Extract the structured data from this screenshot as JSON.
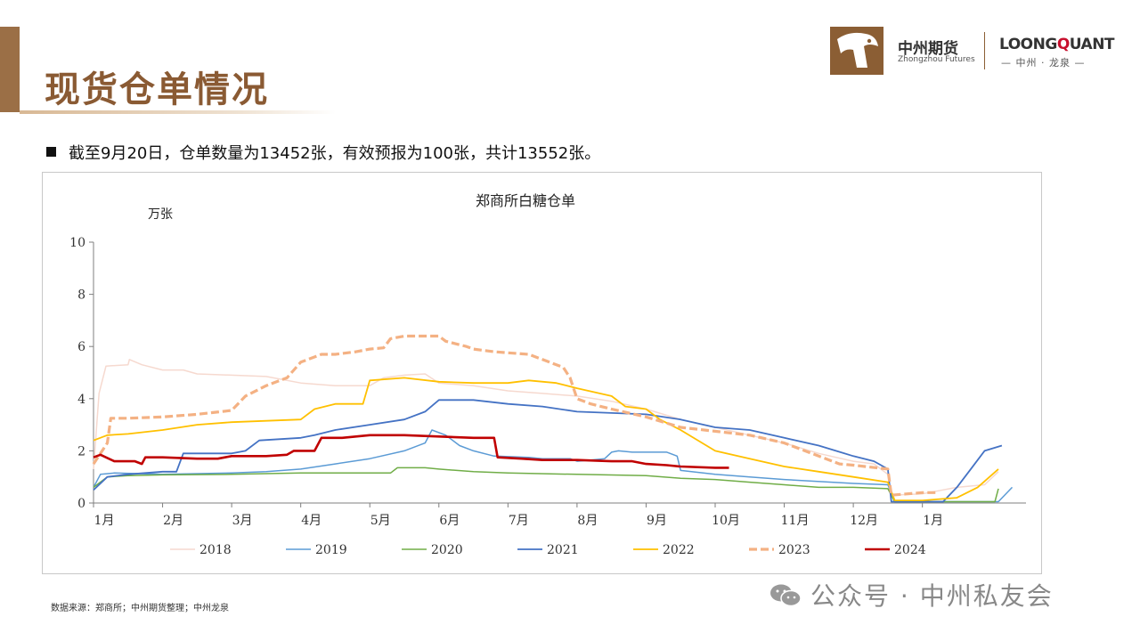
{
  "page": {
    "title": "现货仓单情况",
    "bullet": "截至9月20日，仓单数量为13452张，有效预报为100张，共计13552张。",
    "footnote": "数据来源：郑商所；中州期货整理；中州龙泉",
    "watermark": "公众号 · 中州私友会"
  },
  "logo": {
    "brand_cn": "中州期货",
    "brand_en": "Zhongzhou Futures",
    "quant_prefix": "LOONG",
    "quant_accent": "Q",
    "quant_suffix": "UANT",
    "quant_sub": "— 中州 · 龙泉 —"
  },
  "colors": {
    "brand_brown": "#8b5e34",
    "2018": "#f6d9cf",
    "2019": "#5b9bd5",
    "2020": "#70ad47",
    "2021": "#4472c4",
    "2022": "#ffc000",
    "2023": "#f4b183",
    "2024": "#c00000"
  },
  "chart_data": {
    "type": "line",
    "title": "郑商所白糖仓单",
    "ylabel": "万张",
    "ylim": [
      0,
      10
    ],
    "yticks": [
      "0",
      "2",
      "4",
      "6",
      "8",
      "10"
    ],
    "xlim": [
      0,
      13.5
    ],
    "xticks": [
      "1月",
      "2月",
      "3月",
      "4月",
      "5月",
      "6月",
      "7月",
      "8月",
      "9月",
      "10月",
      "11月",
      "12月",
      "1月"
    ],
    "legend_position": "bottom",
    "series": [
      {
        "name": "2018",
        "color": "#f6d9cf",
        "style": "solid",
        "width": 1.5,
        "points": [
          [
            0,
            1.3
          ],
          [
            0.08,
            4.2
          ],
          [
            0.18,
            5.25
          ],
          [
            0.5,
            5.3
          ],
          [
            0.52,
            5.5
          ],
          [
            0.7,
            5.3
          ],
          [
            1.0,
            5.1
          ],
          [
            1.3,
            5.1
          ],
          [
            1.5,
            4.95
          ],
          [
            2.0,
            4.9
          ],
          [
            2.5,
            4.85
          ],
          [
            3.0,
            4.6
          ],
          [
            3.5,
            4.5
          ],
          [
            4.0,
            4.5
          ],
          [
            4.2,
            4.8
          ],
          [
            4.5,
            4.9
          ],
          [
            4.8,
            4.95
          ],
          [
            5.0,
            4.6
          ],
          [
            5.5,
            4.5
          ],
          [
            6.0,
            4.3
          ],
          [
            6.5,
            4.2
          ],
          [
            7.0,
            4.1
          ],
          [
            7.5,
            3.9
          ],
          [
            8.0,
            3.6
          ],
          [
            8.5,
            3.2
          ],
          [
            9.0,
            2.9
          ],
          [
            9.5,
            2.6
          ],
          [
            10.0,
            2.3
          ],
          [
            10.5,
            1.9
          ],
          [
            11.0,
            1.6
          ],
          [
            11.3,
            1.5
          ],
          [
            11.5,
            1.1
          ],
          [
            11.55,
            0.3
          ],
          [
            12.0,
            0.35
          ],
          [
            12.5,
            0.6
          ],
          [
            12.9,
            0.7
          ],
          [
            13.1,
            1.2
          ]
        ]
      },
      {
        "name": "2019",
        "color": "#5b9bd5",
        "style": "solid",
        "width": 1.5,
        "points": [
          [
            0,
            0.6
          ],
          [
            0.1,
            1.1
          ],
          [
            0.3,
            1.15
          ],
          [
            1.0,
            1.1
          ],
          [
            2.0,
            1.15
          ],
          [
            2.5,
            1.2
          ],
          [
            3.0,
            1.3
          ],
          [
            3.5,
            1.5
          ],
          [
            4.0,
            1.7
          ],
          [
            4.5,
            2.0
          ],
          [
            4.8,
            2.3
          ],
          [
            4.9,
            2.8
          ],
          [
            5.1,
            2.6
          ],
          [
            5.3,
            2.2
          ],
          [
            5.5,
            2.0
          ],
          [
            5.8,
            1.8
          ],
          [
            6.3,
            1.75
          ],
          [
            6.5,
            1.7
          ],
          [
            6.9,
            1.7
          ],
          [
            7.0,
            1.6
          ],
          [
            7.2,
            1.65
          ],
          [
            7.4,
            1.7
          ],
          [
            7.5,
            1.95
          ],
          [
            7.6,
            2.0
          ],
          [
            7.8,
            1.95
          ],
          [
            8.3,
            1.95
          ],
          [
            8.45,
            1.8
          ],
          [
            8.5,
            1.25
          ],
          [
            9.0,
            1.1
          ],
          [
            9.5,
            1.0
          ],
          [
            10.0,
            0.9
          ],
          [
            11.0,
            0.75
          ],
          [
            11.5,
            0.7
          ],
          [
            11.6,
            0.05
          ],
          [
            12.0,
            0.05
          ],
          [
            13.1,
            0.05
          ],
          [
            13.3,
            0.6
          ]
        ]
      },
      {
        "name": "2020",
        "color": "#70ad47",
        "style": "solid",
        "width": 1.5,
        "points": [
          [
            0,
            0.6
          ],
          [
            0.2,
            1.0
          ],
          [
            0.5,
            1.05
          ],
          [
            1.0,
            1.08
          ],
          [
            2.0,
            1.1
          ],
          [
            3.0,
            1.15
          ],
          [
            4.0,
            1.15
          ],
          [
            4.3,
            1.15
          ],
          [
            4.4,
            1.35
          ],
          [
            4.8,
            1.35
          ],
          [
            5.0,
            1.3
          ],
          [
            5.5,
            1.2
          ],
          [
            6.0,
            1.15
          ],
          [
            7.0,
            1.1
          ],
          [
            8.0,
            1.05
          ],
          [
            8.5,
            0.95
          ],
          [
            9.0,
            0.9
          ],
          [
            9.5,
            0.8
          ],
          [
            10.0,
            0.7
          ],
          [
            10.5,
            0.6
          ],
          [
            11.0,
            0.6
          ],
          [
            11.5,
            0.55
          ],
          [
            11.6,
            0.05
          ],
          [
            12.0,
            0.05
          ],
          [
            13.05,
            0.05
          ],
          [
            13.1,
            0.55
          ]
        ]
      },
      {
        "name": "2021",
        "color": "#4472c4",
        "style": "solid",
        "width": 1.8,
        "points": [
          [
            0,
            0.5
          ],
          [
            0.2,
            1.0
          ],
          [
            0.5,
            1.1
          ],
          [
            1.0,
            1.2
          ],
          [
            1.2,
            1.2
          ],
          [
            1.3,
            1.9
          ],
          [
            2.0,
            1.9
          ],
          [
            2.2,
            2.0
          ],
          [
            2.4,
            2.4
          ],
          [
            3.0,
            2.5
          ],
          [
            3.2,
            2.6
          ],
          [
            3.5,
            2.8
          ],
          [
            4.0,
            3.0
          ],
          [
            4.5,
            3.2
          ],
          [
            4.8,
            3.5
          ],
          [
            5.0,
            3.95
          ],
          [
            5.5,
            3.95
          ],
          [
            6.0,
            3.8
          ],
          [
            6.5,
            3.7
          ],
          [
            7.0,
            3.5
          ],
          [
            7.5,
            3.45
          ],
          [
            8.0,
            3.4
          ],
          [
            8.5,
            3.2
          ],
          [
            9.0,
            2.9
          ],
          [
            9.5,
            2.8
          ],
          [
            10.0,
            2.5
          ],
          [
            10.5,
            2.2
          ],
          [
            11.0,
            1.8
          ],
          [
            11.3,
            1.6
          ],
          [
            11.5,
            1.3
          ],
          [
            11.55,
            0.05
          ],
          [
            12.0,
            0.05
          ],
          [
            12.3,
            0.05
          ],
          [
            12.5,
            0.6
          ],
          [
            12.7,
            1.3
          ],
          [
            12.9,
            2.0
          ],
          [
            13.15,
            2.2
          ]
        ]
      },
      {
        "name": "2022",
        "color": "#ffc000",
        "style": "solid",
        "width": 1.8,
        "points": [
          [
            0,
            2.4
          ],
          [
            0.2,
            2.6
          ],
          [
            0.5,
            2.65
          ],
          [
            1.0,
            2.8
          ],
          [
            1.5,
            3.0
          ],
          [
            2.0,
            3.1
          ],
          [
            2.5,
            3.15
          ],
          [
            3.0,
            3.2
          ],
          [
            3.2,
            3.6
          ],
          [
            3.5,
            3.8
          ],
          [
            3.9,
            3.8
          ],
          [
            4.0,
            4.7
          ],
          [
            4.5,
            4.8
          ],
          [
            5.0,
            4.65
          ],
          [
            5.5,
            4.6
          ],
          [
            6.0,
            4.6
          ],
          [
            6.3,
            4.7
          ],
          [
            6.7,
            4.6
          ],
          [
            7.0,
            4.4
          ],
          [
            7.5,
            4.1
          ],
          [
            7.7,
            3.7
          ],
          [
            8.0,
            3.6
          ],
          [
            8.2,
            3.2
          ],
          [
            8.5,
            2.8
          ],
          [
            9.0,
            2.0
          ],
          [
            9.5,
            1.7
          ],
          [
            10.0,
            1.4
          ],
          [
            10.5,
            1.2
          ],
          [
            11.0,
            1.0
          ],
          [
            11.5,
            0.8
          ],
          [
            11.6,
            0.1
          ],
          [
            12.0,
            0.1
          ],
          [
            12.5,
            0.2
          ],
          [
            12.8,
            0.6
          ],
          [
            13.1,
            1.3
          ]
        ]
      },
      {
        "name": "2023",
        "color": "#f4b183",
        "style": "dashed",
        "width": 3.2,
        "points": [
          [
            0,
            1.5
          ],
          [
            0.2,
            2.3
          ],
          [
            0.25,
            3.25
          ],
          [
            0.5,
            3.25
          ],
          [
            1.0,
            3.3
          ],
          [
            1.5,
            3.4
          ],
          [
            2.0,
            3.55
          ],
          [
            2.2,
            4.1
          ],
          [
            2.5,
            4.5
          ],
          [
            2.8,
            4.8
          ],
          [
            3.0,
            5.4
          ],
          [
            3.3,
            5.7
          ],
          [
            3.5,
            5.7
          ],
          [
            3.8,
            5.8
          ],
          [
            4.0,
            5.9
          ],
          [
            4.2,
            5.95
          ],
          [
            4.3,
            6.3
          ],
          [
            4.5,
            6.4
          ],
          [
            5.0,
            6.4
          ],
          [
            5.1,
            6.2
          ],
          [
            5.4,
            6.0
          ],
          [
            5.5,
            5.9
          ],
          [
            5.8,
            5.8
          ],
          [
            6.3,
            5.7
          ],
          [
            6.5,
            5.5
          ],
          [
            6.8,
            5.2
          ],
          [
            6.9,
            4.8
          ],
          [
            7.0,
            4.0
          ],
          [
            7.2,
            3.8
          ],
          [
            7.5,
            3.6
          ],
          [
            8.0,
            3.3
          ],
          [
            8.5,
            2.9
          ],
          [
            9.0,
            2.75
          ],
          [
            9.5,
            2.6
          ],
          [
            10.0,
            2.3
          ],
          [
            10.5,
            1.8
          ],
          [
            10.8,
            1.5
          ],
          [
            11.0,
            1.45
          ],
          [
            11.5,
            1.3
          ],
          [
            11.55,
            0.3
          ],
          [
            12.0,
            0.4
          ],
          [
            12.2,
            0.4
          ]
        ]
      },
      {
        "name": "2024",
        "color": "#c00000",
        "style": "solid",
        "width": 2.6,
        "points": [
          [
            0,
            1.75
          ],
          [
            0.1,
            1.85
          ],
          [
            0.3,
            1.6
          ],
          [
            0.6,
            1.6
          ],
          [
            0.7,
            1.5
          ],
          [
            0.75,
            1.75
          ],
          [
            1.0,
            1.75
          ],
          [
            1.5,
            1.7
          ],
          [
            1.8,
            1.7
          ],
          [
            2.0,
            1.8
          ],
          [
            2.5,
            1.8
          ],
          [
            2.8,
            1.85
          ],
          [
            2.9,
            2.0
          ],
          [
            3.2,
            2.0
          ],
          [
            3.3,
            2.5
          ],
          [
            3.6,
            2.5
          ],
          [
            3.8,
            2.55
          ],
          [
            4.0,
            2.6
          ],
          [
            4.5,
            2.6
          ],
          [
            5.0,
            2.55
          ],
          [
            5.5,
            2.5
          ],
          [
            5.8,
            2.5
          ],
          [
            5.85,
            1.75
          ],
          [
            6.2,
            1.7
          ],
          [
            6.5,
            1.65
          ],
          [
            7.0,
            1.65
          ],
          [
            7.5,
            1.6
          ],
          [
            7.8,
            1.6
          ],
          [
            8.0,
            1.5
          ],
          [
            8.3,
            1.45
          ],
          [
            8.5,
            1.4
          ],
          [
            9.0,
            1.35
          ],
          [
            9.2,
            1.35
          ]
        ]
      }
    ]
  }
}
